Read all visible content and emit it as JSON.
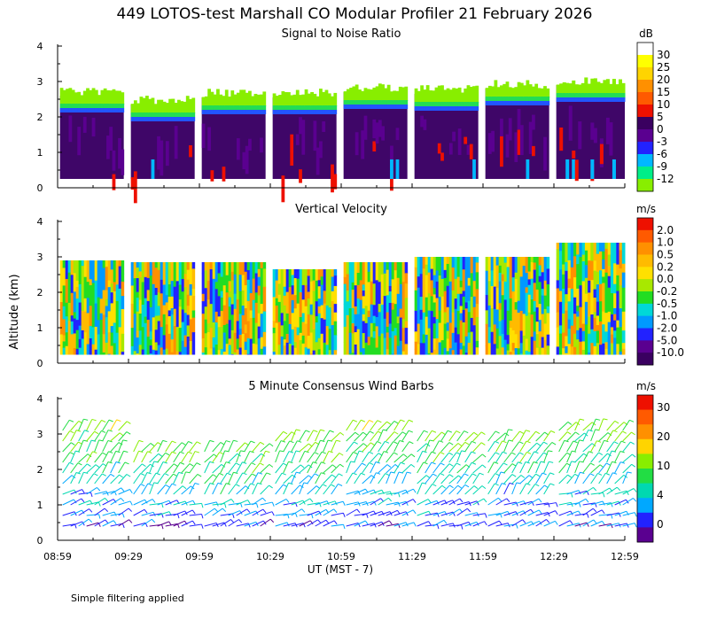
{
  "title": "449 LOTOS-test Marshall CO Modular Profiler 21 February 2026",
  "y_axis_label": "Altitude (km)",
  "x_axis_label": "UT  (MST - 7)",
  "footnote": "Simple filtering applied",
  "x_ticks": [
    "08:59",
    "09:29",
    "09:59",
    "10:29",
    "10:59",
    "11:29",
    "11:59",
    "12:29",
    "12:59"
  ],
  "chart_data": [
    {
      "type": "heatmap",
      "title": "Signal to Noise Ratio",
      "ylabel": "Altitude (km)",
      "ylim": [
        0,
        4
      ],
      "yticks": [
        0,
        1,
        2,
        3,
        4
      ],
      "xlim": [
        "08:59",
        "12:59"
      ],
      "colorbar": {
        "unit": "dB",
        "labels": [
          "30",
          "25",
          "20",
          "15",
          "10",
          "5",
          "0",
          "-3",
          "-6",
          "-9",
          "-12"
        ],
        "colors": [
          "#ffffff",
          "#ffff00",
          "#ffd400",
          "#ff9000",
          "#ff5a00",
          "#ee1000",
          "#3a0060",
          "#5a0090",
          "#2222ff",
          "#00b8ff",
          "#00ee88",
          "#88ee00"
        ]
      },
      "segments": [
        {
          "start": "09:00",
          "end": "09:27",
          "top_km": 2.6,
          "bottom_km": 0.25
        },
        {
          "start": "09:30",
          "end": "09:57",
          "top_km": 2.35,
          "bottom_km": 0.25
        },
        {
          "start": "10:00",
          "end": "10:27",
          "top_km": 2.55,
          "bottom_km": 0.25
        },
        {
          "start": "10:30",
          "end": "10:57",
          "top_km": 2.55,
          "bottom_km": 0.25
        },
        {
          "start": "11:00",
          "end": "11:27",
          "top_km": 2.7,
          "bottom_km": 0.25
        },
        {
          "start": "11:30",
          "end": "11:57",
          "top_km": 2.65,
          "bottom_km": 0.25
        },
        {
          "start": "12:00",
          "end": "12:27",
          "top_km": 2.8,
          "bottom_km": 0.25
        },
        {
          "start": "12:30",
          "end": "12:59",
          "top_km": 2.9,
          "bottom_km": 0.25
        }
      ]
    },
    {
      "type": "heatmap",
      "title": "Vertical Velocity",
      "ylabel": "Altitude (km)",
      "ylim": [
        0,
        4
      ],
      "yticks": [
        0,
        1,
        2,
        3,
        4
      ],
      "xlim": [
        "08:59",
        "12:59"
      ],
      "colorbar": {
        "unit": "m/s",
        "labels": [
          "2.0",
          "1.0",
          "0.5",
          "0.2",
          "0.0",
          "-0.2",
          "-0.5",
          "-1.0",
          "-2.0",
          "-5.0",
          "-10.0"
        ],
        "colors": [
          "#ee1000",
          "#ff5a00",
          "#ff9000",
          "#ffbb00",
          "#ffe000",
          "#a8e800",
          "#22dd22",
          "#00d8d8",
          "#0099ff",
          "#2222ff",
          "#5a0090",
          "#3a0060"
        ]
      },
      "segments": [
        {
          "start": "09:00",
          "end": "09:27",
          "top_km": 2.9,
          "bottom_km": 0.25
        },
        {
          "start": "09:30",
          "end": "09:57",
          "top_km": 2.85,
          "bottom_km": 0.25
        },
        {
          "start": "10:00",
          "end": "10:27",
          "top_km": 2.85,
          "bottom_km": 0.25
        },
        {
          "start": "10:30",
          "end": "10:57",
          "top_km": 2.65,
          "bottom_km": 0.25
        },
        {
          "start": "11:00",
          "end": "11:27",
          "top_km": 2.85,
          "bottom_km": 0.25
        },
        {
          "start": "11:30",
          "end": "11:57",
          "top_km": 3.0,
          "bottom_km": 0.25
        },
        {
          "start": "12:00",
          "end": "12:27",
          "top_km": 3.0,
          "bottom_km": 0.25
        },
        {
          "start": "12:30",
          "end": "12:59",
          "top_km": 3.4,
          "bottom_km": 0.25
        }
      ]
    },
    {
      "type": "scatter",
      "title": "5 Minute Consensus Wind Barbs",
      "ylabel": "Altitude (km)",
      "ylim": [
        0,
        4
      ],
      "yticks": [
        0,
        1,
        2,
        3,
        4
      ],
      "xlim": [
        "08:59",
        "12:59"
      ],
      "colorbar": {
        "unit": "m/s",
        "labels": [
          "30",
          "20",
          "10",
          "4",
          "0"
        ],
        "colors": [
          "#ee1000",
          "#ff5a00",
          "#ff9000",
          "#ffd400",
          "#88ee00",
          "#22dd44",
          "#00d8b0",
          "#00a8ff",
          "#2222ff",
          "#5a0090"
        ]
      },
      "segments": [
        {
          "start": "09:00",
          "end": "09:27",
          "top_km": 3.3,
          "bottom_km": 0.3
        },
        {
          "start": "09:30",
          "end": "09:57",
          "top_km": 2.8,
          "bottom_km": 0.3
        },
        {
          "start": "10:00",
          "end": "10:27",
          "top_km": 2.8,
          "bottom_km": 0.3
        },
        {
          "start": "10:30",
          "end": "10:57",
          "top_km": 3.0,
          "bottom_km": 0.3
        },
        {
          "start": "11:00",
          "end": "11:27",
          "top_km": 3.3,
          "bottom_km": 0.3
        },
        {
          "start": "11:30",
          "end": "11:57",
          "top_km": 3.0,
          "bottom_km": 0.3
        },
        {
          "start": "12:00",
          "end": "12:27",
          "top_km": 3.0,
          "bottom_km": 0.3
        },
        {
          "start": "12:30",
          "end": "12:59",
          "top_km": 3.4,
          "bottom_km": 0.3
        }
      ]
    }
  ]
}
